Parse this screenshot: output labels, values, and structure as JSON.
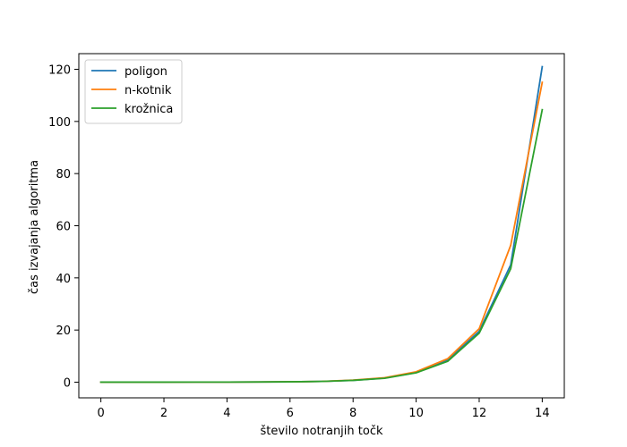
{
  "chart_data": {
    "type": "line",
    "xlabel": "število notranjih točk",
    "ylabel": "čas izvajanja algoritma",
    "xlim": [
      -0.7,
      14.7
    ],
    "ylim": [
      -6,
      126
    ],
    "xticks": [
      0,
      2,
      4,
      6,
      8,
      10,
      12,
      14
    ],
    "yticks": [
      0,
      20,
      40,
      60,
      80,
      100,
      120
    ],
    "grid": false,
    "legend_position": "top-left",
    "x": [
      0,
      1,
      2,
      3,
      4,
      5,
      6,
      7,
      8,
      9,
      10,
      11,
      12,
      13,
      14
    ],
    "series": [
      {
        "name": "poligon",
        "color": "#1f77b4",
        "values": [
          0.02,
          0.02,
          0.02,
          0.03,
          0.05,
          0.08,
          0.15,
          0.3,
          0.7,
          1.6,
          3.7,
          8.5,
          19.5,
          45,
          121
        ]
      },
      {
        "name": "n-kotnik",
        "color": "#ff7f0e",
        "values": [
          0.02,
          0.02,
          0.02,
          0.03,
          0.05,
          0.08,
          0.15,
          0.3,
          0.8,
          1.7,
          4.0,
          9.0,
          20.5,
          52.5,
          115
        ]
      },
      {
        "name": "krožnica",
        "color": "#2ca02c",
        "values": [
          0.02,
          0.02,
          0.02,
          0.03,
          0.05,
          0.08,
          0.15,
          0.3,
          0.7,
          1.5,
          3.6,
          8.0,
          18.8,
          43.5,
          104.5
        ]
      }
    ]
  }
}
